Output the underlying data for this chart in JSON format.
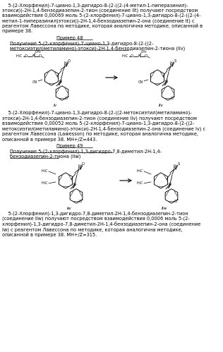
{
  "background_color": "#ffffff",
  "dpi": 100,
  "figsize": [
    3.16,
    4.99
  ],
  "fs_body": 4.8,
  "fs_heading": 4.8,
  "lh_factor": 1.55,
  "top_text_lines": [
    "    5-(2-Хлорфенил)-7-циано-1,3-дигидро-8-(2-((2-(4-метил-1-пиперазинил)-",
    "этокси))-2H-1,4-бензодиазепин-2-тион (соединение IIt) получают посредством",
    "взаимодействия 0,00069 моль 5-(2-хлорфенил)-7-циано-1,3-дигидро-8-(2-((2-(4-",
    "метил-1-пиперазинил)этокси))-2H-1,4-бензодиазепин-2-она (соединение It) с",
    "реагентом Лавессона по методике, которая аналогична методике, описанной в",
    "примере 38."
  ],
  "ex48_heading": "Пример 48",
  "ex48_title_lines": [
    "Получение 5-(2-хлорфенил)-7-циано-1,3-дигидро-8-(2-((2-",
    "метоксиэтил)метиламино)-этокси)-2H-1,4-бензодиазепин-2-тиона (IIv)"
  ],
  "text48_lines": [
    "    5-(2-Хлорфенил)-7-циано-1,3-дигидро-8-(2-((2-метоксиэтил)метиламино)-",
    "этокси)-2H-1,4-бензодиазепин-2-тион (соединение IIv) получают посредством",
    "взаимодействия 0,00052 моль 5-(2-хлорфенил)-7-циано-1,3-дигидро-8-(2-((2-",
    "метоксиэтил)метиламино)-этокси)-2H-1,4-бензодиазепин-2-она (соединение Iv) с",
    "реагентом Лавессона (Lawesson) по методике, которая аналогична методике,",
    "описанной в примере 38. МН+/Z=443."
  ],
  "ex49_heading": "Пример 49",
  "ex49_title_lines": [
    "Получение 5-(2-хлорфенил)-1,3-дигидро-7,8-диметил-2H-1,4-",
    "бензодиазепин-2-тиона (IIw)"
  ],
  "text49_lines": [
    "    5-(2-Хлорфенил)-1,3-дигидро-7,8-диметил-2H-1,4-бензодиазепин-2-тион",
    "(соединение IIw) получают посредством взаимодействия 0,0006 моль 5-(2-",
    "хлорфенил)-1,3-дигидро-7,8-диметил-2H-1,4-бензодиазепин-2-она (соединение",
    "Iw) с реагентом Лавессона по методике, которая аналогична методике,",
    "описанной в примере 38. МН+/Z=315."
  ]
}
